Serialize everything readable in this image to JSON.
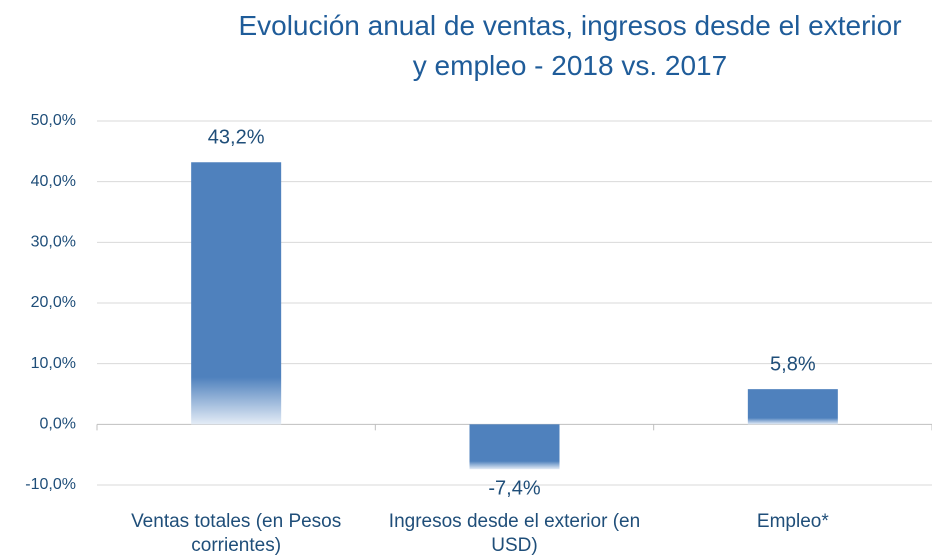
{
  "chart_data": {
    "type": "bar",
    "title": "Evolución anual de ventas, ingresos desde el exterior y empleo - 2018 vs. 2017",
    "categories": [
      "Ventas totales (en Pesos corrientes)",
      "Ingresos desde el exterior (en USD)",
      "Empleo*"
    ],
    "values": [
      43.2,
      -7.4,
      5.8
    ],
    "value_labels": [
      "43,2%",
      "-7,4%",
      "5,8%"
    ],
    "color": "#4f81bd",
    "ylim": [
      -10,
      50
    ],
    "yticks": [
      {
        "value": -10,
        "label": "-10,0%"
      },
      {
        "value": 0,
        "label": "0,0%"
      },
      {
        "value": 10,
        "label": "10,0%"
      },
      {
        "value": 20,
        "label": "20,0%"
      },
      {
        "value": 30,
        "label": "30,0%"
      },
      {
        "value": 40,
        "label": "40,0%"
      },
      {
        "value": 50,
        "label": "50,0%"
      }
    ],
    "grid": true
  }
}
